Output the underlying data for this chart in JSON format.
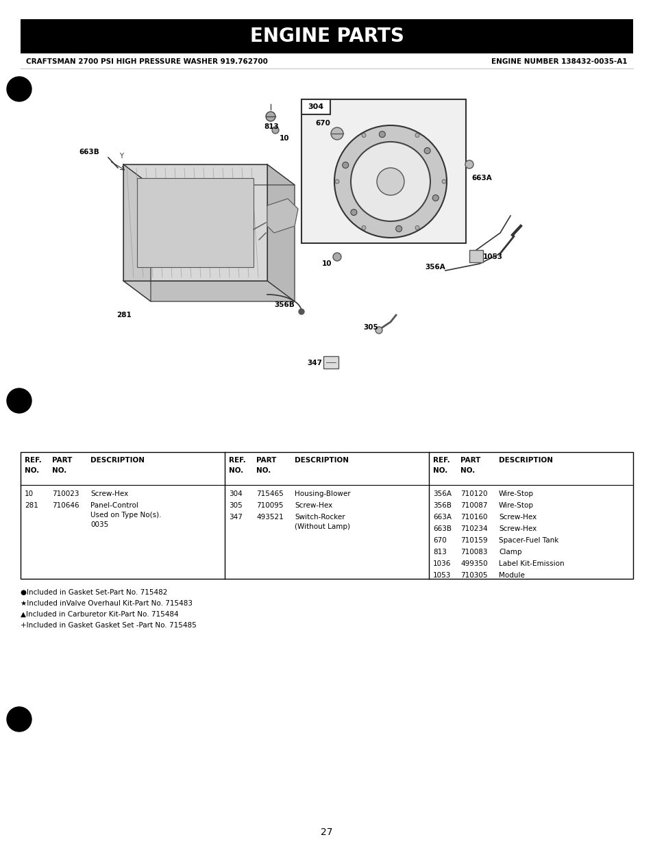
{
  "title": "ENGINE PARTS",
  "title_bg": "#000000",
  "title_color": "#ffffff",
  "subtitle_left": "CRAFTSMAN 2700 PSI HIGH PRESSURE WASHER 919.762700",
  "subtitle_right": "ENGINE NUMBER 138432-0035-A1",
  "page_number": "27",
  "footnotes": [
    "●Included in Gasket Set-Part No. 715482",
    "★Included inValve Overhaul Kit-Part No. 715483",
    "▲Included in Carburetor Kit-Part No. 715484",
    "+Included in Gasket Gasket Set -Part No. 715485"
  ],
  "table_data_col1": [
    [
      "10",
      "710023",
      "Screw-Hex"
    ],
    [
      "281",
      "710646",
      "Panel-Control\nUsed on Type No(s).\n0035"
    ]
  ],
  "table_data_col2": [
    [
      "304",
      "715465",
      "Housing-Blower"
    ],
    [
      "305",
      "710095",
      "Screw-Hex"
    ],
    [
      "347",
      "493521",
      "Switch-Rocker\n(Without Lamp)"
    ]
  ],
  "table_data_col3": [
    [
      "356A",
      "710120",
      "Wire-Stop"
    ],
    [
      "356B",
      "710087",
      "Wire-Stop"
    ],
    [
      "663A",
      "710160",
      "Screw-Hex"
    ],
    [
      "663B",
      "710234",
      "Screw-Hex"
    ],
    [
      "670",
      "710159",
      "Spacer-Fuel Tank"
    ],
    [
      "813",
      "710083",
      "Clamp"
    ],
    [
      "1036",
      "499350",
      "Label Kit-Emission"
    ],
    [
      "1053",
      "710305",
      "Module"
    ]
  ],
  "background_color": "#ffffff"
}
